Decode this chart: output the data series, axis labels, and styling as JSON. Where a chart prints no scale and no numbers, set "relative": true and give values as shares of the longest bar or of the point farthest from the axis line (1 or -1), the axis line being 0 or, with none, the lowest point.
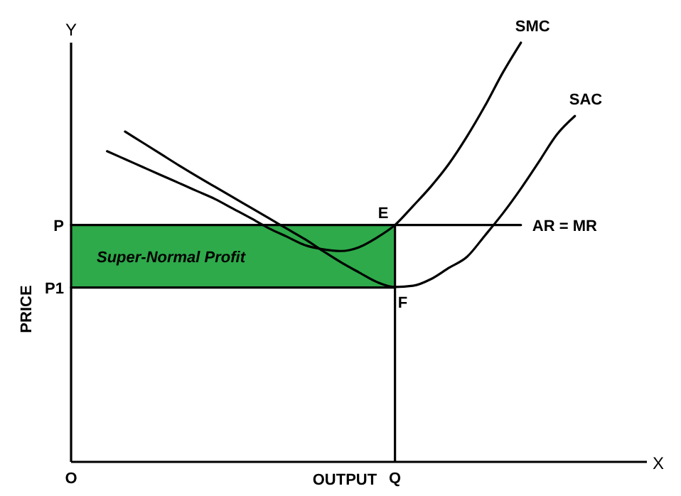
{
  "chart_data": {
    "type": "line",
    "relative": true,
    "xlabel": "OUTPUT",
    "ylabel": "PRICE",
    "categories": [
      "O",
      null,
      null,
      null,
      null,
      null,
      null,
      null,
      null,
      null,
      null,
      null,
      null,
      null,
      null,
      null,
      null,
      null,
      "Q",
      null,
      null,
      null,
      null,
      null,
      null,
      null,
      null,
      null,
      null,
      null,
      null,
      null,
      null
    ],
    "series": [
      {
        "name": "AR = MR",
        "color": "#000000",
        "values": [
          0.565,
          0.565,
          0.565,
          0.565,
          0.565,
          0.565,
          0.565,
          0.565,
          0.565,
          0.565,
          0.565,
          0.565,
          0.565,
          0.565,
          0.565,
          0.565,
          0.565,
          0.565,
          0.565,
          0.565,
          0.565,
          0.565,
          0.565,
          0.565,
          0.565,
          0.565,
          null,
          null,
          null,
          null,
          null,
          null,
          null
        ]
      },
      {
        "color": "#000000",
        "values": [
          0.416,
          0.416,
          0.416,
          0.416,
          0.416,
          0.416,
          0.416,
          0.416,
          0.416,
          0.416,
          0.416,
          0.416,
          0.416,
          0.416,
          0.416,
          0.416,
          0.416,
          0.416,
          0.416,
          null,
          null,
          null,
          null,
          null,
          null,
          null,
          null,
          null,
          null,
          null,
          null,
          null,
          null
        ]
      },
      {
        "type": "bar",
        "color": "#000000",
        "values": [
          null,
          null,
          null,
          null,
          null,
          null,
          null,
          null,
          null,
          null,
          null,
          null,
          null,
          null,
          null,
          null,
          null,
          null,
          0.565,
          null,
          null,
          null,
          null,
          null,
          null,
          null,
          null,
          null,
          null,
          null,
          null,
          null,
          null
        ]
      },
      {
        "name": "SMC",
        "color": "#000000",
        "values": [
          null,
          null,
          0.741,
          0.722,
          0.703,
          0.684,
          0.665,
          0.646,
          0.627,
          0.604,
          0.581,
          0.557,
          0.537,
          0.517,
          0.507,
          0.503,
          0.512,
          0.535,
          0.565,
          0.61,
          0.657,
          0.711,
          0.776,
          0.849,
          0.929,
          1,
          null,
          null,
          null,
          null,
          null,
          null,
          null
        ]
      },
      {
        "name": "SAC",
        "color": "#000000",
        "values": [
          null,
          null,
          null,
          0.788,
          0.761,
          0.734,
          0.707,
          0.681,
          0.656,
          0.631,
          0.606,
          0.581,
          0.556,
          0.531,
          0.503,
          0.476,
          0.452,
          0.429,
          0.417,
          0.42,
          0.436,
          0.463,
          0.489,
          0.54,
          0.593,
          0.652,
          0.716,
          0.781,
          0.825,
          null,
          null,
          null,
          null
        ]
      }
    ],
    "bands": [
      {
        "axis": "y",
        "from": 0.416,
        "to": 0.565,
        "label": "Super-Normal Profit",
        "color": "#2eaa4a"
      }
    ],
    "annotations": [
      "Y",
      "X",
      {
        "text": "E",
        "x": "Q",
        "y": 0.565
      },
      {
        "text": "F",
        "x": "Q",
        "y": 0.416
      },
      {
        "text": "P",
        "x": "O",
        "y": 0.565
      },
      {
        "text": "P1",
        "x": "O",
        "y": 0.416
      }
    ]
  }
}
